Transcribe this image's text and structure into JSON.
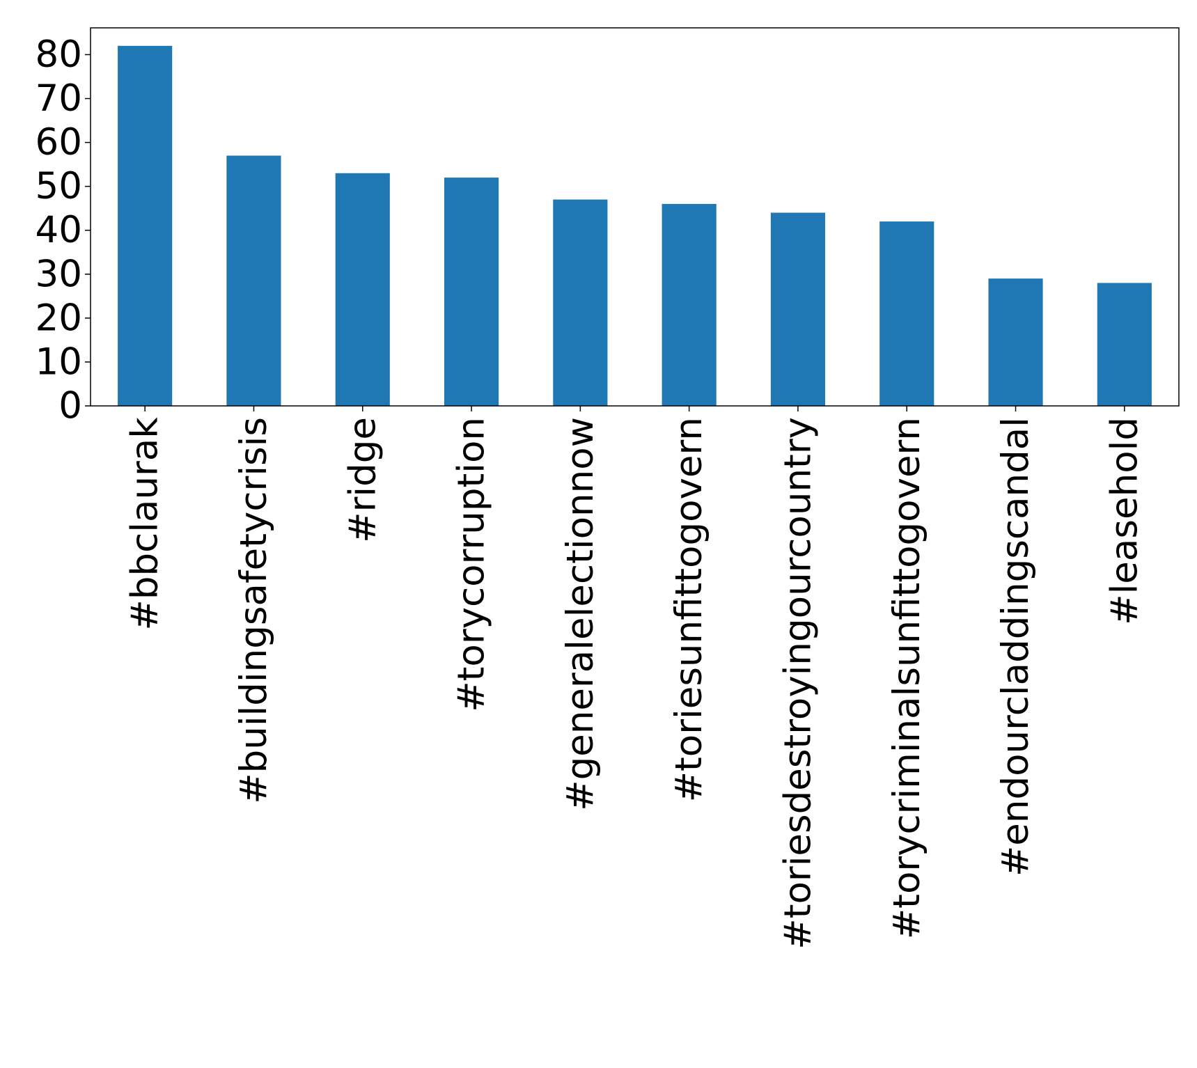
{
  "chart_data": {
    "type": "bar",
    "title": "",
    "xlabel": "",
    "ylabel": "",
    "categories": [
      "#bbclaurak",
      "#buildingsafetycrisis",
      "#ridge",
      "#torycorruption",
      "#generalelectionnow",
      "#toriesunfittogovern",
      "#toriesdestroyingourcountry",
      "#torycriminalsunfittogovern",
      "#endourcladdingscandal",
      "#leasehold"
    ],
    "values": [
      82,
      57,
      53,
      52,
      47,
      46,
      44,
      42,
      29,
      28
    ],
    "ylim": [
      0,
      86.1
    ],
    "yticks": [
      0,
      10,
      20,
      30,
      40,
      50,
      60,
      70,
      80
    ],
    "grid": false,
    "legend": "none",
    "bar_color": "#1f77b4"
  }
}
